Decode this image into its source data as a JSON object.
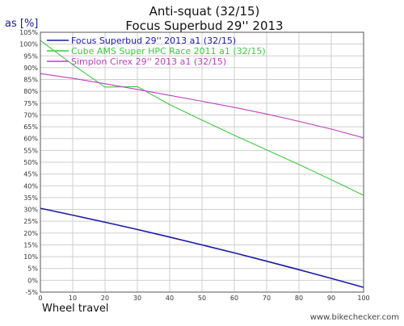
{
  "chart_data": {
    "type": "line",
    "title": "Anti-squat (32/15)",
    "subtitle": "Focus Superbud 29'' 2013",
    "ylabel": "as [%]",
    "xlabel": "Wheel travel",
    "watermark": "www.bikechecker.com",
    "xlim": [
      0,
      100
    ],
    "ylim": [
      -5,
      105
    ],
    "xticks": [
      0,
      10,
      20,
      30,
      40,
      50,
      60,
      70,
      80,
      90,
      100
    ],
    "yticks": [
      -5,
      0,
      5,
      10,
      15,
      20,
      25,
      30,
      35,
      40,
      45,
      50,
      55,
      60,
      65,
      70,
      75,
      80,
      85,
      90,
      95,
      100,
      105
    ],
    "ytick_suffix": "%",
    "grid": true,
    "legend_position": "top-left",
    "series": [
      {
        "name": "Focus Superbud 29'' 2013 a1 (32/15)",
        "color": "#1a1aa6",
        "x": [
          0,
          10,
          20,
          30,
          40,
          50,
          60,
          70,
          80,
          90,
          100
        ],
        "y": [
          30.5,
          27.6,
          24.6,
          21.5,
          18.3,
          15.0,
          11.6,
          8.1,
          4.5,
          0.8,
          -3.0
        ]
      },
      {
        "name": "Cube AMS Super HPC Race 2011 a1 (32/15)",
        "color": "#3ec93e",
        "x": [
          0,
          10,
          20,
          30,
          40,
          50,
          60,
          70,
          80,
          90,
          100
        ],
        "y": [
          101.5,
          91.3,
          81.8,
          82.0,
          74.4,
          67.8,
          61.4,
          55.2,
          49.0,
          42.6,
          36.0
        ]
      },
      {
        "name": "Simplon Cirex 29'' 2013 a1 (32/15)",
        "color": "#c03fc0",
        "x": [
          0,
          10,
          20,
          30,
          40,
          50,
          60,
          70,
          80,
          90,
          100
        ],
        "y": [
          87.5,
          85.5,
          83.2,
          80.8,
          78.3,
          75.8,
          73.2,
          70.4,
          67.3,
          64.0,
          60.3
        ]
      }
    ]
  }
}
